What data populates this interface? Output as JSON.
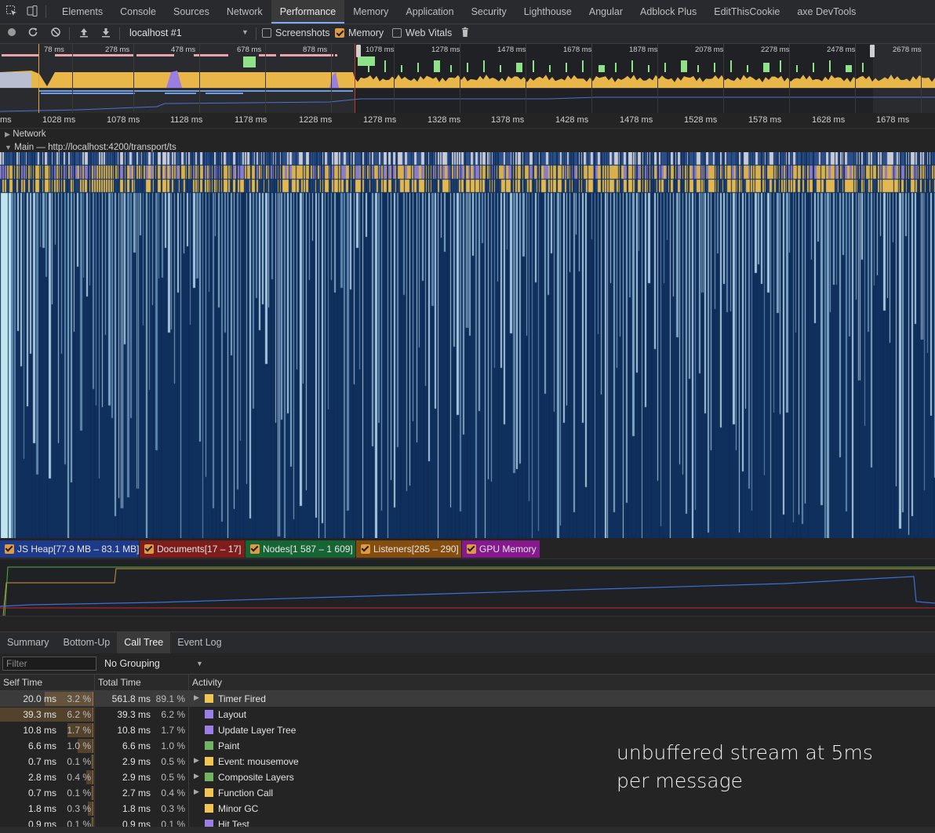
{
  "tabs": [
    {
      "label": "Elements"
    },
    {
      "label": "Console"
    },
    {
      "label": "Sources"
    },
    {
      "label": "Network"
    },
    {
      "label": "Performance"
    },
    {
      "label": "Memory"
    },
    {
      "label": "Application"
    },
    {
      "label": "Security"
    },
    {
      "label": "Lighthouse"
    },
    {
      "label": "Angular"
    },
    {
      "label": "Adblock Plus"
    },
    {
      "label": "EditThisCookie"
    },
    {
      "label": "axe DevTools"
    }
  ],
  "active_tab": "Performance",
  "toolbar": {
    "recording_target": "localhost #1",
    "screenshots_label": "Screenshots",
    "memory_label": "Memory",
    "web_vitals_label": "Web Vitals",
    "screenshots_checked": false,
    "memory_checked": true,
    "web_vitals_checked": false
  },
  "overview_ticks": [
    "78 ms",
    "278 ms",
    "478 ms",
    "678 ms",
    "878 ms",
    "1078 ms",
    "1278 ms",
    "1478 ms",
    "1678 ms",
    "1878 ms",
    "2078 ms",
    "2278 ms",
    "2478 ms",
    "2678 ms"
  ],
  "ruler_ticks": [
    "ms",
    "1028 ms",
    "1078 ms",
    "1128 ms",
    "1178 ms",
    "1228 ms",
    "1278 ms",
    "1328 ms",
    "1378 ms",
    "1428 ms",
    "1478 ms",
    "1528 ms",
    "1578 ms",
    "1628 ms",
    "1678 ms"
  ],
  "tracks": {
    "network": "Network",
    "main": "Main — http://localhost:4200/transport/ts"
  },
  "counters": [
    {
      "label": "JS Heap[77.9 MB – 83.1 MB]",
      "color": "#1e3a8a"
    },
    {
      "label": "Documents[17 – 17]",
      "color": "#7f1d1d"
    },
    {
      "label": "Nodes[1 587 – 1 609]",
      "color": "#166534"
    },
    {
      "label": "Listeners[285 – 290]",
      "color": "#854d0e"
    },
    {
      "label": "GPU Memory",
      "color": "#86198f"
    }
  ],
  "bottom_tabs": [
    {
      "label": "Summary"
    },
    {
      "label": "Bottom-Up"
    },
    {
      "label": "Call Tree"
    },
    {
      "label": "Event Log"
    }
  ],
  "active_bottom_tab": "Call Tree",
  "filter": {
    "placeholder": "Filter",
    "value": ""
  },
  "grouping": "No Grouping",
  "columns": {
    "self": "Self Time",
    "total": "Total Time",
    "activity": "Activity"
  },
  "rows": [
    {
      "self": "20.0 ms",
      "self_pct": "3.2 %",
      "total": "561.8 ms",
      "total_pct": "89.1 %",
      "activity": "Timer Fired",
      "color": "#f1c453",
      "expandable": true,
      "selected": true,
      "self_frac": 0.032,
      "total_frac": 0.891
    },
    {
      "self": "39.3 ms",
      "self_pct": "6.2 %",
      "total": "39.3 ms",
      "total_pct": "6.2 %",
      "activity": "Layout",
      "color": "#9b7fe6",
      "expandable": false,
      "selected": false,
      "self_frac": 0.062,
      "total_frac": 0.062
    },
    {
      "self": "10.8 ms",
      "self_pct": "1.7 %",
      "total": "10.8 ms",
      "total_pct": "1.7 %",
      "activity": "Update Layer Tree",
      "color": "#9b7fe6",
      "expandable": false,
      "selected": false,
      "self_frac": 0.017,
      "total_frac": 0.017
    },
    {
      "self": "6.6 ms",
      "self_pct": "1.0 %",
      "total": "6.6 ms",
      "total_pct": "1.0 %",
      "activity": "Paint",
      "color": "#71b363",
      "expandable": false,
      "selected": false,
      "self_frac": 0.01,
      "total_frac": 0.01
    },
    {
      "self": "0.7 ms",
      "self_pct": "0.1 %",
      "total": "2.9 ms",
      "total_pct": "0.5 %",
      "activity": "Event: mousemove",
      "color": "#f1c453",
      "expandable": true,
      "selected": false,
      "self_frac": 0.001,
      "total_frac": 0.005
    },
    {
      "self": "2.8 ms",
      "self_pct": "0.4 %",
      "total": "2.9 ms",
      "total_pct": "0.5 %",
      "activity": "Composite Layers",
      "color": "#71b363",
      "expandable": true,
      "selected": false,
      "self_frac": 0.004,
      "total_frac": 0.005
    },
    {
      "self": "0.7 ms",
      "self_pct": "0.1 %",
      "total": "2.7 ms",
      "total_pct": "0.4 %",
      "activity": "Function Call",
      "color": "#f1c453",
      "expandable": true,
      "selected": false,
      "self_frac": 0.001,
      "total_frac": 0.004
    },
    {
      "self": "1.8 ms",
      "self_pct": "0.3 %",
      "total": "1.8 ms",
      "total_pct": "0.3 %",
      "activity": "Minor GC",
      "color": "#f1c453",
      "expandable": false,
      "selected": false,
      "self_frac": 0.003,
      "total_frac": 0.003
    },
    {
      "self": "0.9 ms",
      "self_pct": "0.1 %",
      "total": "0.9 ms",
      "total_pct": "0.1 %",
      "activity": "Hit Test",
      "color": "#9b7fe6",
      "expandable": false,
      "selected": false,
      "self_frac": 0.001,
      "total_frac": 0.001
    }
  ],
  "note": {
    "line1": "unbuffered stream at 5ms",
    "line2": "per message"
  }
}
